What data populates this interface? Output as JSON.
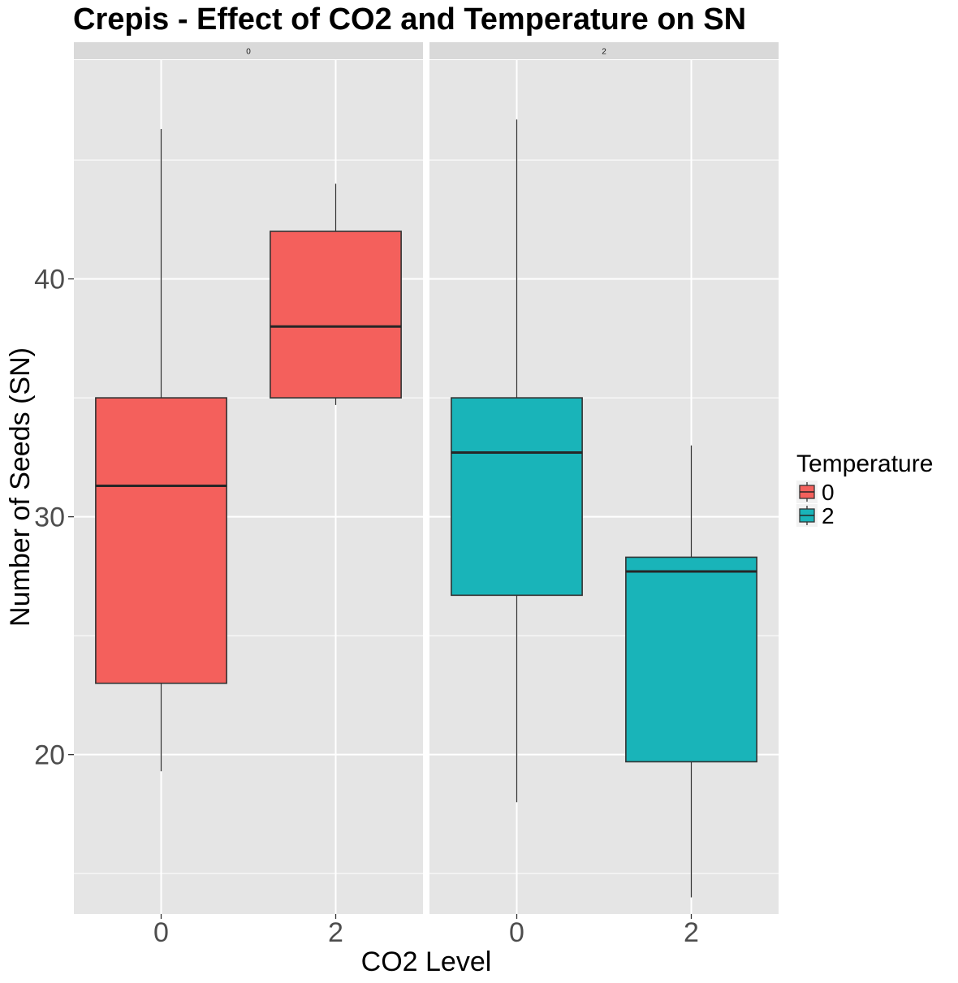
{
  "chart_data": {
    "type": "boxplot",
    "title": "Crepis - Effect of CO2 and Temperature on SN",
    "xlabel": "CO2 Level",
    "ylabel": "Number of Seeds (SN)",
    "ylim": [
      13.3,
      49.2
    ],
    "y_ticks": [
      20,
      30,
      40
    ],
    "grid": true,
    "facet_by": "Temperature",
    "facets": [
      {
        "strip_label": "0",
        "temperature": "0",
        "categories": [
          "0",
          "2"
        ],
        "boxes": [
          {
            "co2": "0",
            "min": 19.3,
            "q1": 23.0,
            "median": 31.3,
            "q3": 35.0,
            "max": 46.3
          },
          {
            "co2": "2",
            "min": 34.7,
            "q1": 35.0,
            "median": 38.0,
            "q3": 42.0,
            "max": 44.0
          }
        ]
      },
      {
        "strip_label": "2",
        "temperature": "2",
        "categories": [
          "0",
          "2"
        ],
        "boxes": [
          {
            "co2": "0",
            "min": 18.0,
            "q1": 26.7,
            "median": 32.7,
            "q3": 35.0,
            "max": 46.7
          },
          {
            "co2": "2",
            "min": 14.0,
            "q1": 19.7,
            "median": 27.7,
            "q3": 28.3,
            "max": 33.0
          }
        ]
      }
    ],
    "legend": {
      "title": "Temperature",
      "position": "right",
      "entries": [
        {
          "label": "0",
          "color": "#F8766D"
        },
        {
          "label": "2",
          "color": "#00BFC4"
        }
      ]
    }
  },
  "colors": {
    "panel_bg": "#E5E5E5",
    "strip_bg": "#D9D9D9",
    "grid": "#FFFFFF",
    "box_line": "#333333",
    "temp0_fill": "#F4605C",
    "temp2_fill": "#19B4B9"
  }
}
